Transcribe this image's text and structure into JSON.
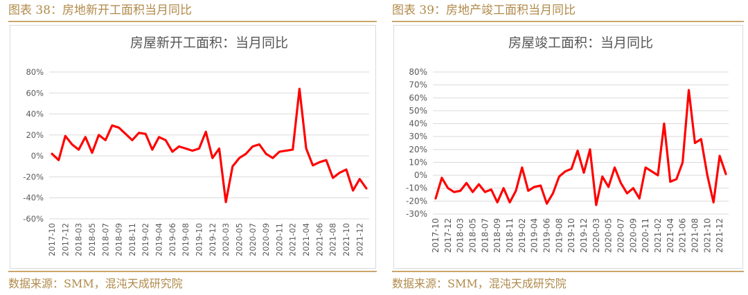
{
  "left": {
    "heading": "图表 38：房地新开工面积当月同比",
    "source": "数据来源：SMM，混沌天成研究院",
    "chart_data": {
      "type": "line",
      "title": "房屋新开工面积：当月同比",
      "xlabel": "",
      "ylabel": "",
      "ylim": [
        -60,
        80
      ],
      "yticks": [
        "80%",
        "60%",
        "40%",
        "20%",
        "0%",
        "-20%",
        "-40%",
        "-60%"
      ],
      "x_tick_labels": [
        "2017-10",
        "2017-12",
        "2018-03",
        "2018-05",
        "2018-07",
        "2018-09",
        "2018-11",
        "2019-02",
        "2019-04",
        "2019-06",
        "2019-08",
        "2019-10",
        "2019-12",
        "2020-03",
        "2020-05",
        "2020-07",
        "2020-09",
        "2020-11",
        "2021-02",
        "2021-04",
        "2021-06",
        "2021-08",
        "2021-10",
        "2021-12"
      ],
      "grid": true,
      "color": "#ff0000",
      "series": [
        {
          "values": [
            2,
            -4,
            19,
            11,
            6,
            18,
            3,
            20,
            15,
            29,
            27,
            21,
            15,
            22,
            21,
            6,
            18,
            15,
            4,
            9,
            7,
            5,
            7,
            23,
            -2,
            7,
            -44,
            -10,
            -2,
            2,
            9,
            11,
            2,
            -2,
            4,
            5,
            6,
            64,
            7,
            -9,
            -6,
            -4,
            -21,
            -16,
            -13,
            -33,
            -22,
            -31
          ]
        }
      ]
    }
  },
  "right": {
    "heading": "图表 39：房地产竣工面积当月同比",
    "source": "数据来源：SMM，混沌天成研究院",
    "chart_data": {
      "type": "line",
      "title": "房屋竣工面积：当月同比",
      "xlabel": "",
      "ylabel": "",
      "ylim": [
        -30,
        80
      ],
      "yticks": [
        "80%",
        "70%",
        "60%",
        "50%",
        "40%",
        "30%",
        "20%",
        "10%",
        "0%",
        "-10%",
        "-20%",
        "-30%"
      ],
      "x_tick_labels": [
        "2017-10",
        "2017-12",
        "2018-03",
        "2018-05",
        "2018-07",
        "2018-09",
        "2018-11",
        "2019-02",
        "2019-04",
        "2019-06",
        "2019-08",
        "2019-10",
        "2019-12",
        "2020-03",
        "2020-05",
        "2020-07",
        "2020-09",
        "2020-11",
        "2021-02",
        "2021-04",
        "2021-06",
        "2021-08",
        "2021-10",
        "2021-12"
      ],
      "grid": true,
      "color": "#ff0000",
      "series": [
        {
          "values": [
            -18,
            -2,
            -10,
            -13,
            -12,
            -6,
            -13,
            -7,
            -13,
            -11,
            -21,
            -10,
            -21,
            -12,
            6,
            -12,
            -9,
            -8,
            -22,
            -14,
            -1,
            3,
            5,
            19,
            2,
            20,
            -23,
            -1,
            -9,
            6,
            -6,
            -14,
            -10,
            -18,
            6,
            3,
            0,
            40,
            -5,
            -3,
            10,
            66,
            25,
            28,
            0,
            -21,
            15,
            1
          ]
        }
      ]
    }
  }
}
